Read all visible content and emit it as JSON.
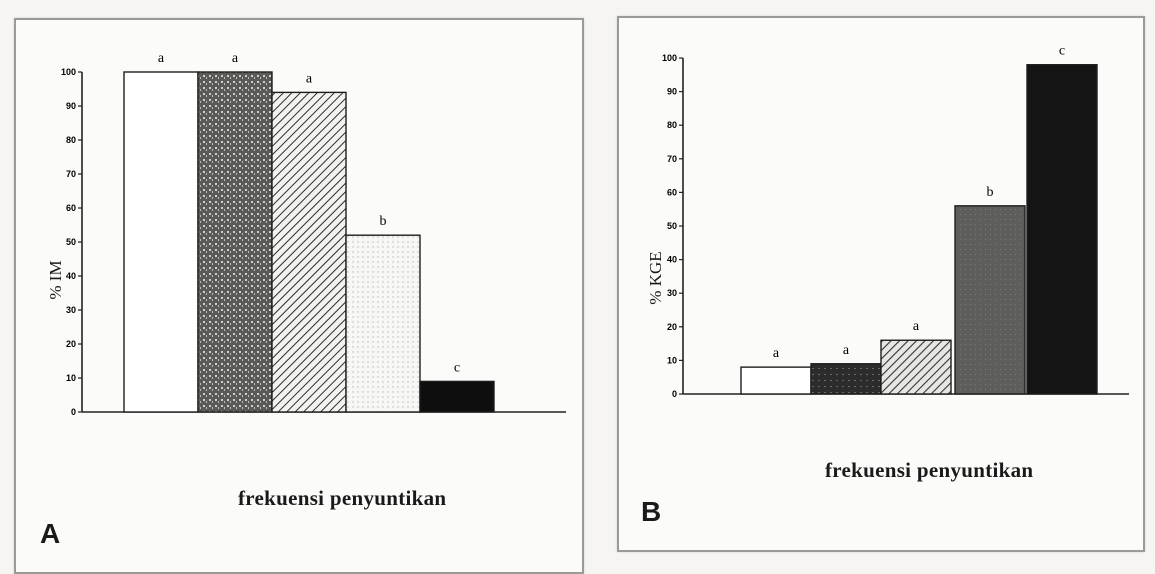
{
  "chart_data": [
    {
      "type": "bar",
      "panel_label": "A",
      "xlabel": "frekuensi penyuntikan",
      "ylabel": "% IM",
      "ylim": [
        0,
        100
      ],
      "yticks": [
        0,
        10,
        20,
        30,
        40,
        50,
        60,
        70,
        80,
        90,
        100
      ],
      "grid": false,
      "legend": "none",
      "categories": [
        "",
        "",
        "",
        "",
        ""
      ],
      "values": [
        100,
        100,
        94,
        52,
        9
      ],
      "significance_labels": [
        "a",
        "a",
        "a",
        "b",
        "c"
      ],
      "bar_styles": [
        "white",
        "dark-speckle",
        "diagonal-hatch",
        "light-dotted",
        "black"
      ]
    },
    {
      "type": "bar",
      "panel_label": "B",
      "xlabel": "frekuensi penyuntikan",
      "ylabel": "% KGE",
      "ylim": [
        0,
        100
      ],
      "yticks": [
        0,
        10,
        20,
        30,
        40,
        50,
        60,
        70,
        80,
        90,
        100
      ],
      "grid": false,
      "legend": "none",
      "categories": [
        "",
        "",
        "",
        "",
        ""
      ],
      "values": [
        8,
        9,
        16,
        56,
        98
      ],
      "significance_labels": [
        "a",
        "a",
        "a",
        "b",
        "c"
      ],
      "bar_styles": [
        "white",
        "dark-speckle",
        "diagonal-hatch",
        "grey",
        "black"
      ]
    }
  ]
}
